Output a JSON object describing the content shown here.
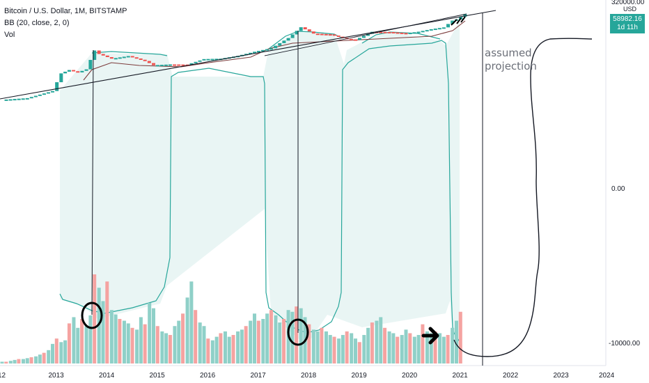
{
  "legend": {
    "symbol": "Bitcoin / U.S. Dollar, 1M, BITSTAMP",
    "indicator": "BB (20, close, 2, 0)",
    "volume": "Vol"
  },
  "price_axis": {
    "unit": "USD",
    "ticks": [
      "320000.00",
      "0.00",
      "-10000.00"
    ],
    "last_price": "58982.16",
    "countdown": "1d 11h"
  },
  "time_axis": {
    "ticks": [
      "12",
      "2013",
      "2014",
      "2015",
      "2016",
      "2017",
      "2018",
      "2019",
      "2020",
      "2021",
      "2022",
      "2023",
      "2024"
    ]
  },
  "annotation": {
    "line1": "assumed",
    "line2": "projection"
  },
  "colors": {
    "up": "#26a69a",
    "down": "#ef5350",
    "vol_up": "#8fd0c8",
    "vol_down": "#f5a3a1",
    "bb_band": "#26a69a",
    "bb_fill": "#e9f5f4",
    "ma": "#7b3a3a",
    "drawing": "#131722",
    "grid_text": "#131722"
  },
  "chart_data": {
    "type": "bar",
    "title": "Bitcoin / U.S. Dollar, 1M, BITSTAMP",
    "x_range": [
      2012.0,
      2024.0
    ],
    "series": [
      {
        "name": "Vol",
        "x": [
          2012.0,
          2012.08,
          2012.17,
          2012.25,
          2012.33,
          2012.42,
          2012.5,
          2012.58,
          2012.67,
          2012.75,
          2012.83,
          2012.92,
          2013.0,
          2013.08,
          2013.17,
          2013.25,
          2013.33,
          2013.42,
          2013.5,
          2013.58,
          2013.67,
          2013.75,
          2013.83,
          2013.92,
          2014.0,
          2014.08,
          2014.17,
          2014.25,
          2014.33,
          2014.42,
          2014.5,
          2014.58,
          2014.67,
          2014.75,
          2014.83,
          2014.92,
          2015.0,
          2015.08,
          2015.17,
          2015.25,
          2015.33,
          2015.42,
          2015.5,
          2015.58,
          2015.67,
          2015.75,
          2015.83,
          2015.92,
          2016.0,
          2016.08,
          2016.17,
          2016.25,
          2016.33,
          2016.42,
          2016.5,
          2016.58,
          2016.67,
          2016.75,
          2016.83,
          2016.92,
          2017.0,
          2017.08,
          2017.17,
          2017.25,
          2017.33,
          2017.42,
          2017.5,
          2017.58,
          2017.67,
          2017.75,
          2017.83,
          2017.92,
          2018.0,
          2018.08,
          2018.17,
          2018.25,
          2018.33,
          2018.42,
          2018.5,
          2018.58,
          2018.67,
          2018.75,
          2018.83,
          2018.92,
          2019.0,
          2019.08,
          2019.17,
          2019.25,
          2019.33,
          2019.42,
          2019.5,
          2019.58,
          2019.67,
          2019.75,
          2019.83,
          2019.92,
          2020.0,
          2020.08,
          2020.17,
          2020.25,
          2020.33,
          2020.42,
          2020.5,
          2020.58,
          2020.67,
          2020.75,
          2020.83,
          2020.92,
          2021.0,
          2021.08
        ],
        "values": [
          2,
          2,
          3,
          4,
          5,
          5,
          6,
          7,
          8,
          10,
          12,
          15,
          22,
          28,
          24,
          26,
          45,
          52,
          40,
          50,
          42,
          54,
          100,
          85,
          70,
          92,
          60,
          55,
          50,
          48,
          45,
          40,
          38,
          52,
          44,
          68,
          62,
          42,
          36,
          34,
          32,
          42,
          48,
          56,
          74,
          92,
          60,
          46,
          42,
          28,
          26,
          30,
          34,
          36,
          30,
          32,
          36,
          38,
          42,
          48,
          56,
          48,
          50,
          56,
          60,
          54,
          46,
          50,
          60,
          58,
          64,
          62,
          52,
          44,
          38,
          36,
          40,
          36,
          32,
          30,
          28,
          32,
          36,
          34,
          28,
          24,
          32,
          40,
          46,
          48,
          52,
          40,
          36,
          34,
          30,
          32,
          38,
          34,
          30,
          32,
          44,
          36,
          34,
          36,
          34,
          30,
          32,
          40,
          48,
          58
        ]
      },
      {
        "name": "close",
        "x": [
          2012.0,
          2012.5,
          2013.0,
          2013.17,
          2013.33,
          2013.5,
          2013.67,
          2013.83,
          2013.92,
          2014.17,
          2014.5,
          2014.83,
          2015.0,
          2015.33,
          2015.67,
          2016.0,
          2016.33,
          2016.67,
          2017.0,
          2017.33,
          2017.67,
          2017.92,
          2018.17,
          2018.5,
          2018.83,
          2019.0,
          2019.33,
          2019.67,
          2020.0,
          2020.25,
          2020.5,
          2020.75,
          2020.92,
          2021.0,
          2021.17
        ],
        "values": [
          5,
          6,
          13,
          90,
          130,
          100,
          140,
          1100,
          750,
          450,
          600,
          350,
          220,
          240,
          235,
          430,
          450,
          610,
          960,
          1400,
          4300,
          14000,
          7000,
          6400,
          3900,
          3500,
          8500,
          8300,
          7200,
          8600,
          11300,
          13800,
          29000,
          33000,
          58982.16
        ]
      }
    ],
    "annotations": [
      "assumed",
      "projection"
    ]
  }
}
